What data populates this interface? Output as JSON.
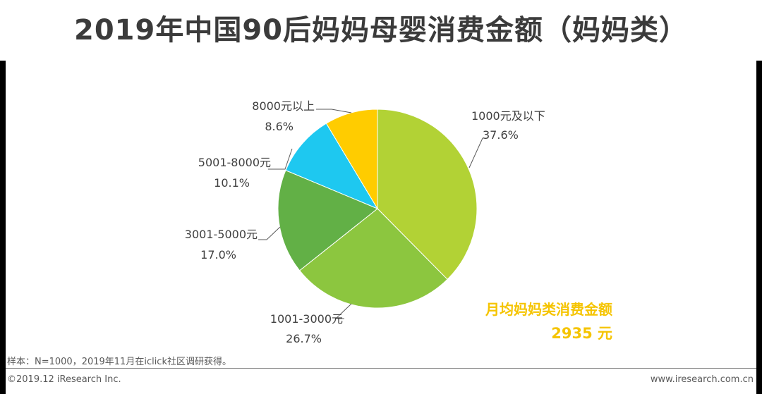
{
  "title": "2019年中国90后妈妈母婴消费金额（妈妈类）",
  "chart_data": {
    "type": "pie",
    "title": "2019年中国90后妈妈母婴消费金额（妈妈类）",
    "slices": [
      {
        "label": "1000元及以下",
        "value": 37.6,
        "value_text": "37.6%",
        "color": "#b2d235"
      },
      {
        "label": "1001-3000元",
        "value": 26.7,
        "value_text": "26.7%",
        "color": "#8cc63f"
      },
      {
        "label": "3001-5000元",
        "value": 17.0,
        "value_text": "17.0%",
        "color": "#62b046"
      },
      {
        "label": "5001-8000元",
        "value": 10.1,
        "value_text": "10.1%",
        "color": "#1ec8f0"
      },
      {
        "label": "8000元以上",
        "value": 8.6,
        "value_text": "8.6%",
        "color": "#ffcc00"
      }
    ]
  },
  "summary": {
    "label": "月均妈妈类消费金额",
    "amount": "2935 元",
    "color": "#f5c400"
  },
  "footer": {
    "source": "样本：N=1000，2019年11月在iclick社区调研获得。",
    "copyright": "©2019.12 iResearch Inc.",
    "site": "www.iresearch.com.cn"
  }
}
